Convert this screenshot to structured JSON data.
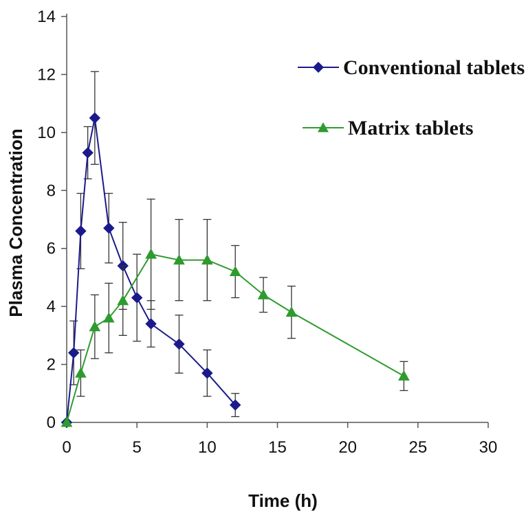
{
  "chart_data": {
    "type": "line",
    "title": "",
    "xlabel": "Time (h)",
    "ylabel": "Plasma Concentration",
    "xlim": [
      0,
      30
    ],
    "ylim": [
      0,
      14
    ],
    "xticks": [
      0,
      5,
      10,
      15,
      20,
      25,
      30
    ],
    "yticks": [
      0,
      2,
      4,
      6,
      8,
      10,
      12,
      14
    ],
    "grid": false,
    "legend_position": "top-right",
    "series": [
      {
        "name": "Conventional tablets",
        "color": "#1a1a8c",
        "marker": "diamond",
        "x": [
          0,
          0.5,
          1,
          1.5,
          2,
          3,
          4,
          5,
          6,
          8,
          10,
          12
        ],
        "y": [
          0,
          2.4,
          6.6,
          9.3,
          10.5,
          6.7,
          5.4,
          4.3,
          3.4,
          2.7,
          1.7,
          0.6
        ],
        "err": [
          0,
          1.1,
          1.3,
          0.9,
          1.6,
          1.2,
          1.5,
          1.5,
          0.8,
          1.0,
          0.8,
          0.4
        ]
      },
      {
        "name": "Matrix tablets",
        "color": "#2e9b2e",
        "marker": "triangle",
        "x": [
          0,
          1,
          2,
          3,
          4,
          6,
          8,
          10,
          12,
          14,
          16,
          24
        ],
        "y": [
          0,
          1.7,
          3.3,
          3.6,
          4.2,
          5.8,
          5.6,
          5.6,
          5.2,
          4.4,
          3.8,
          1.6
        ],
        "err": [
          0,
          0.8,
          1.1,
          1.2,
          1.2,
          1.9,
          1.4,
          1.4,
          0.9,
          0.6,
          0.9,
          0.5
        ]
      }
    ]
  }
}
